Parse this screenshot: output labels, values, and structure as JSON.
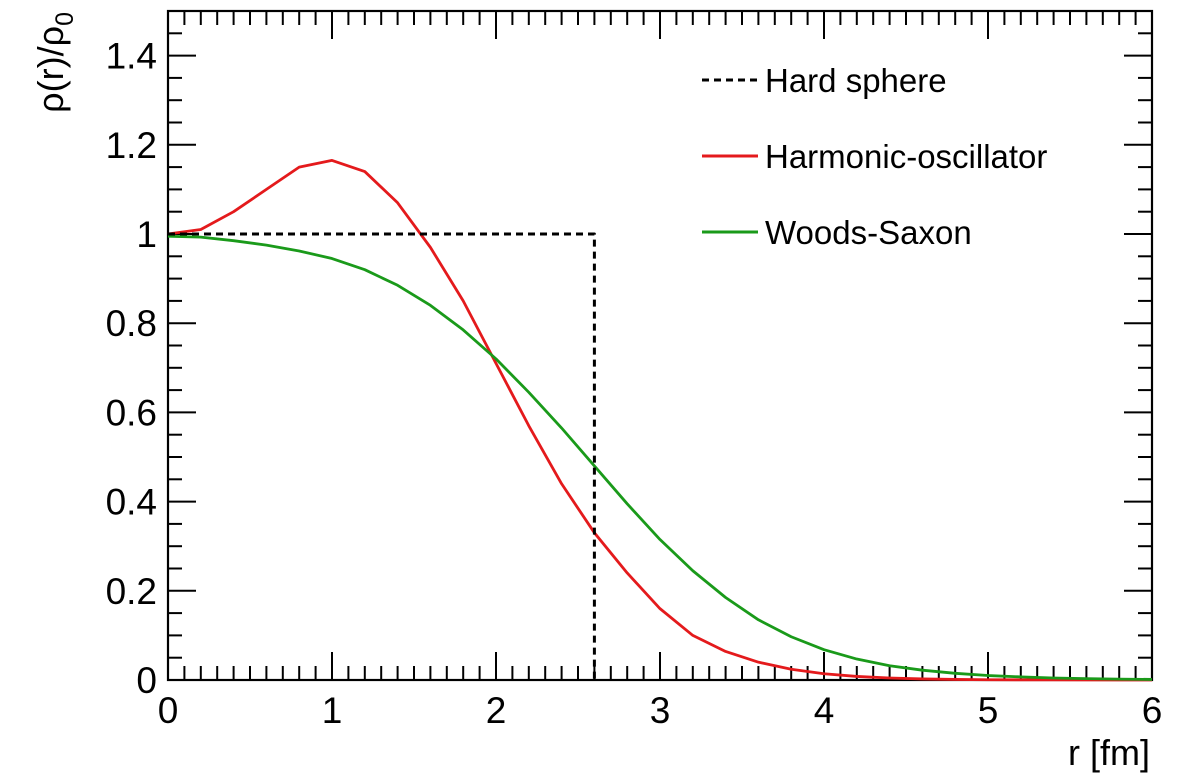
{
  "chart_data": {
    "type": "line",
    "xlabel": "r [fm]",
    "ylabel": "ρ(r)/ρ",
    "ylabel_subscript": "0",
    "xlim": [
      0,
      6
    ],
    "ylim": [
      0,
      1.5
    ],
    "x_ticks": [
      0,
      1,
      2,
      3,
      4,
      5,
      6
    ],
    "x_tick_labels": [
      "0",
      "1",
      "2",
      "3",
      "4",
      "5",
      "6"
    ],
    "y_ticks": [
      0,
      0.2,
      0.4,
      0.6,
      0.8,
      1,
      1.2,
      1.4
    ],
    "y_tick_labels": [
      "0",
      "0.2",
      "0.4",
      "0.6",
      "0.8",
      "1",
      "1.2",
      "1.4"
    ],
    "grid": false,
    "legend_position": "top-right",
    "series": [
      {
        "name": "Hard sphere",
        "color": "#000000",
        "style": "dashed",
        "x": [
          0,
          0.5,
          1.0,
          1.5,
          2.0,
          2.5,
          2.6,
          2.6
        ],
        "y": [
          1,
          1,
          1,
          1,
          1,
          1,
          1,
          0
        ]
      },
      {
        "name": "Harmonic-oscillator",
        "color": "#e41a1c",
        "style": "solid",
        "x": [
          0,
          0.2,
          0.4,
          0.6,
          0.8,
          1.0,
          1.2,
          1.4,
          1.6,
          1.8,
          2.0,
          2.2,
          2.4,
          2.6,
          2.8,
          3.0,
          3.2,
          3.4,
          3.6,
          3.8,
          4.0,
          4.2,
          4.4,
          4.6,
          4.8,
          5.0,
          5.4,
          5.8,
          6.0
        ],
        "y": [
          1.0,
          1.01,
          1.05,
          1.1,
          1.15,
          1.165,
          1.14,
          1.07,
          0.97,
          0.85,
          0.71,
          0.57,
          0.44,
          0.33,
          0.24,
          0.16,
          0.1,
          0.064,
          0.04,
          0.024,
          0.014,
          0.008,
          0.0045,
          0.0024,
          0.0012,
          0.0006,
          0.0002,
          0.0,
          0.0
        ]
      },
      {
        "name": "Woods-Saxon",
        "color": "#1a9a1a",
        "style": "solid",
        "x": [
          0,
          0.2,
          0.4,
          0.6,
          0.8,
          1.0,
          1.2,
          1.4,
          1.6,
          1.8,
          2.0,
          2.2,
          2.4,
          2.6,
          2.8,
          3.0,
          3.2,
          3.4,
          3.6,
          3.8,
          4.0,
          4.2,
          4.4,
          4.6,
          4.8,
          5.0,
          5.2,
          5.4,
          5.6,
          5.8,
          6.0
        ],
        "y": [
          0.995,
          0.993,
          0.985,
          0.975,
          0.962,
          0.945,
          0.92,
          0.885,
          0.84,
          0.785,
          0.72,
          0.645,
          0.565,
          0.48,
          0.395,
          0.315,
          0.245,
          0.185,
          0.135,
          0.097,
          0.068,
          0.047,
          0.032,
          0.022,
          0.015,
          0.01,
          0.007,
          0.0045,
          0.003,
          0.002,
          0.0013
        ]
      }
    ]
  }
}
